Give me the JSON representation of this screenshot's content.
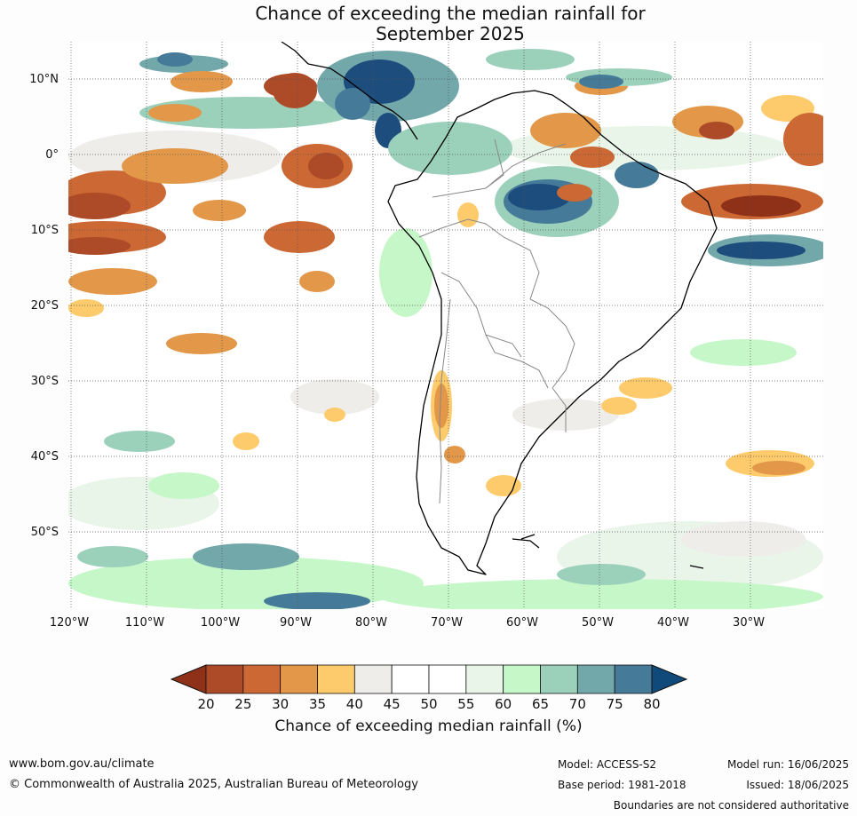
{
  "title": {
    "line1": "Chance of exceeding the median rainfall for",
    "line2": "September 2025"
  },
  "map": {
    "lat_labels": [
      "10°N",
      "0°",
      "10°S",
      "20°S",
      "30°S",
      "40°S",
      "50°S"
    ],
    "lon_labels": [
      "120°W",
      "110°W",
      "100°W",
      "90°W",
      "80°W",
      "70°W",
      "60°W",
      "50°W",
      "40°W",
      "30°W"
    ]
  },
  "colorbar": {
    "ticks": [
      "20",
      "25",
      "30",
      "35",
      "40",
      "45",
      "50",
      "55",
      "60",
      "65",
      "70",
      "75",
      "80"
    ],
    "colors": [
      "#8e3118",
      "#ad4a27",
      "#cc6833",
      "#e29749",
      "#fdcb6c",
      "#efedea",
      "#ffffff",
      "#ffffff",
      "#e9f5e9",
      "#c6f7c8",
      "#9bd0bb",
      "#73a8ab",
      "#467a99",
      "#1d4d7d",
      "#104a7a"
    ],
    "label": "Chance of exceeding median rainfall (%)"
  },
  "footer": {
    "website": "www.bom.gov.au/climate",
    "copyright": "© Commonwealth of Australia 2025, Australian Bureau of Meteorology",
    "model": "Model: ACCESS-S2",
    "base_period": "Base period: 1981-2018",
    "model_run": "Model run: 16/06/2025",
    "issued": "Issued: 18/06/2025",
    "disclaimer": "Boundaries are not considered authoritative"
  }
}
